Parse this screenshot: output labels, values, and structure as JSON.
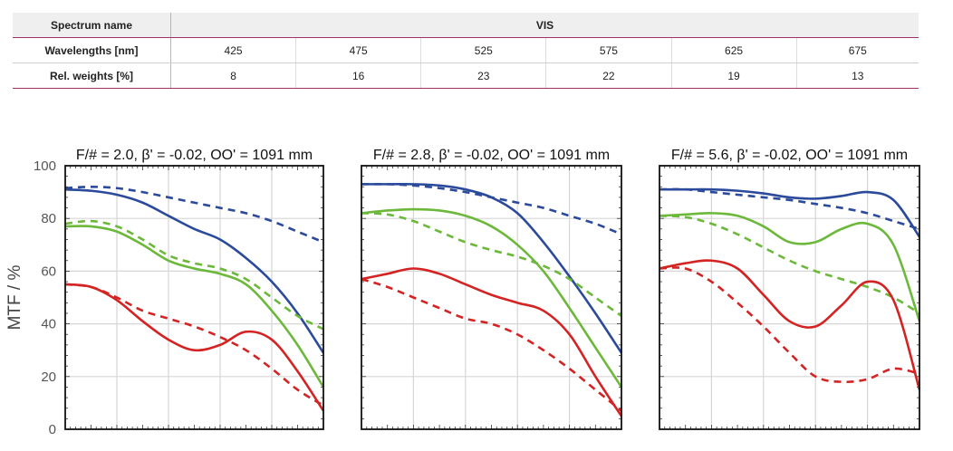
{
  "table": {
    "spectrum_label": "Spectrum name",
    "spectrum_value": "VIS",
    "wavelengths_label": "Wavelengths [nm]",
    "wavelengths": [
      "425",
      "475",
      "525",
      "575",
      "625",
      "675"
    ],
    "weights_label": "Rel. weights [%]",
    "weights": [
      "8",
      "16",
      "23",
      "22",
      "19",
      "13"
    ]
  },
  "chart_data": [
    {
      "type": "line",
      "title": "F/# = 2.0, β' = -0.02, OO' = 1091 mm",
      "ylabel": "MTF / %",
      "ylim": [
        0,
        100
      ],
      "yticks": [
        0,
        20,
        40,
        60,
        80,
        100
      ],
      "xlim": [
        0,
        1
      ],
      "grid": true,
      "legend": "none",
      "series": [
        {
          "color": "#2b4a9b",
          "dash": true,
          "x": [
            0,
            0.1,
            0.2,
            0.3,
            0.4,
            0.5,
            0.6,
            0.7,
            0.8,
            0.9,
            1
          ],
          "y": [
            91.5,
            92,
            91.5,
            90,
            88,
            86,
            84,
            82,
            79,
            75,
            71
          ]
        },
        {
          "color": "#2b4a9b",
          "dash": false,
          "x": [
            0,
            0.1,
            0.2,
            0.3,
            0.4,
            0.5,
            0.6,
            0.7,
            0.8,
            0.9,
            1
          ],
          "y": [
            91,
            90.5,
            89,
            86,
            81,
            76,
            72,
            65,
            56,
            44,
            29
          ]
        },
        {
          "color": "#6bb83a",
          "dash": true,
          "x": [
            0,
            0.1,
            0.2,
            0.3,
            0.4,
            0.5,
            0.6,
            0.7,
            0.8,
            0.9,
            1
          ],
          "y": [
            78,
            79,
            77,
            72,
            66,
            63,
            61,
            57,
            50,
            43,
            38
          ]
        },
        {
          "color": "#6bb83a",
          "dash": false,
          "x": [
            0,
            0.1,
            0.2,
            0.3,
            0.4,
            0.5,
            0.6,
            0.7,
            0.8,
            0.9,
            1
          ],
          "y": [
            77,
            77,
            75,
            70,
            64,
            61,
            59,
            55,
            45,
            32,
            16
          ]
        },
        {
          "color": "#d42323",
          "dash": true,
          "x": [
            0,
            0.1,
            0.2,
            0.3,
            0.4,
            0.5,
            0.6,
            0.7,
            0.8,
            0.9,
            1
          ],
          "y": [
            55,
            54,
            50,
            45,
            42,
            39,
            35,
            30,
            23,
            15,
            9
          ]
        },
        {
          "color": "#d42323",
          "dash": false,
          "x": [
            0,
            0.1,
            0.2,
            0.3,
            0.4,
            0.5,
            0.6,
            0.7,
            0.8,
            0.9,
            1
          ],
          "y": [
            55,
            54,
            49,
            41,
            34,
            30,
            32,
            37,
            34,
            22,
            7
          ]
        }
      ]
    },
    {
      "type": "line",
      "title": "F/# = 2.8, β' = -0.02, OO' = 1091 mm",
      "ylim": [
        0,
        100
      ],
      "yticks": [
        0,
        20,
        40,
        60,
        80,
        100
      ],
      "xlim": [
        0,
        1
      ],
      "grid": true,
      "legend": "none",
      "series": [
        {
          "color": "#2b4a9b",
          "dash": true,
          "x": [
            0,
            0.1,
            0.2,
            0.3,
            0.4,
            0.5,
            0.6,
            0.7,
            0.8,
            0.9,
            1
          ],
          "y": [
            93,
            93,
            92.5,
            91.5,
            90,
            88,
            86,
            84,
            81,
            78,
            74
          ]
        },
        {
          "color": "#2b4a9b",
          "dash": false,
          "x": [
            0,
            0.1,
            0.2,
            0.3,
            0.4,
            0.5,
            0.6,
            0.7,
            0.8,
            0.9,
            1
          ],
          "y": [
            93,
            93,
            93,
            92.5,
            91,
            88,
            82,
            71,
            58,
            44,
            29
          ]
        },
        {
          "color": "#6bb83a",
          "dash": true,
          "x": [
            0,
            0.1,
            0.2,
            0.3,
            0.4,
            0.5,
            0.6,
            0.7,
            0.8,
            0.9,
            1
          ],
          "y": [
            82,
            81.5,
            79,
            75,
            71,
            68,
            65.5,
            62,
            57,
            50,
            43
          ]
        },
        {
          "color": "#6bb83a",
          "dash": false,
          "x": [
            0,
            0.1,
            0.2,
            0.3,
            0.4,
            0.5,
            0.6,
            0.7,
            0.8,
            0.9,
            1
          ],
          "y": [
            82,
            83,
            83.5,
            83,
            81,
            77,
            70,
            60,
            46,
            31,
            16
          ]
        },
        {
          "color": "#d42323",
          "dash": true,
          "x": [
            0,
            0.1,
            0.2,
            0.3,
            0.4,
            0.5,
            0.6,
            0.7,
            0.8,
            0.9,
            1
          ],
          "y": [
            57,
            54,
            50,
            46,
            42,
            40,
            36,
            30,
            23,
            15,
            7
          ]
        },
        {
          "color": "#d42323",
          "dash": false,
          "x": [
            0,
            0.1,
            0.2,
            0.3,
            0.4,
            0.5,
            0.6,
            0.7,
            0.8,
            0.9,
            1
          ],
          "y": [
            57,
            59,
            61,
            59,
            55,
            51,
            48,
            45,
            36,
            20,
            5
          ]
        }
      ]
    },
    {
      "type": "line",
      "title": "F/# = 5.6, β' = -0.02, OO' = 1091 mm",
      "ylim": [
        0,
        100
      ],
      "yticks": [
        0,
        20,
        40,
        60,
        80,
        100
      ],
      "xlim": [
        0,
        1
      ],
      "grid": true,
      "legend": "none",
      "series": [
        {
          "color": "#2b4a9b",
          "dash": true,
          "x": [
            0,
            0.1,
            0.2,
            0.3,
            0.4,
            0.5,
            0.6,
            0.7,
            0.8,
            0.9,
            1
          ],
          "y": [
            91,
            91,
            90,
            89,
            88,
            87,
            85.5,
            84,
            82,
            79,
            76
          ]
        },
        {
          "color": "#2b4a9b",
          "dash": false,
          "x": [
            0,
            0.1,
            0.2,
            0.3,
            0.4,
            0.5,
            0.6,
            0.7,
            0.8,
            0.9,
            1
          ],
          "y": [
            91,
            91,
            91,
            90.5,
            89.5,
            88,
            87.5,
            88.5,
            90,
            87,
            73
          ]
        },
        {
          "color": "#6bb83a",
          "dash": true,
          "x": [
            0,
            0.1,
            0.2,
            0.3,
            0.4,
            0.5,
            0.6,
            0.7,
            0.8,
            0.9,
            1
          ],
          "y": [
            81,
            80.5,
            78,
            74,
            69,
            64,
            60,
            57,
            54,
            50,
            44
          ]
        },
        {
          "color": "#6bb83a",
          "dash": false,
          "x": [
            0,
            0.1,
            0.2,
            0.3,
            0.4,
            0.5,
            0.6,
            0.7,
            0.8,
            0.9,
            1
          ],
          "y": [
            81,
            81.5,
            82,
            81,
            77,
            71,
            71,
            76,
            78,
            70,
            41
          ]
        },
        {
          "color": "#d42323",
          "dash": true,
          "x": [
            0,
            0.1,
            0.2,
            0.3,
            0.4,
            0.5,
            0.6,
            0.7,
            0.8,
            0.9,
            1
          ],
          "y": [
            61,
            61,
            56,
            48,
            39,
            29,
            20,
            18,
            19,
            23,
            21
          ]
        },
        {
          "color": "#d42323",
          "dash": false,
          "x": [
            0,
            0.1,
            0.2,
            0.3,
            0.4,
            0.5,
            0.6,
            0.7,
            0.8,
            0.9,
            1
          ],
          "y": [
            61,
            63,
            64,
            61,
            51,
            41,
            39,
            47,
            56,
            49,
            15
          ]
        }
      ]
    }
  ]
}
